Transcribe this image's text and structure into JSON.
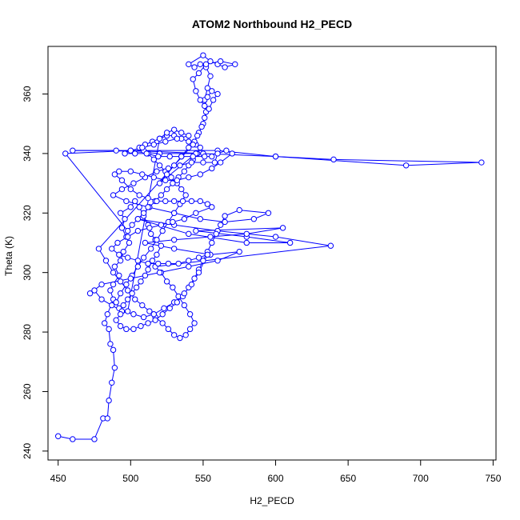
{
  "chart_data": {
    "type": "scatter",
    "title": "ATOM2 Northbound H2_PECD",
    "xlabel": "H2_PECD",
    "ylabel": "Theta (K)",
    "xlim": [
      443,
      752
    ],
    "ylim": [
      237,
      376
    ],
    "xticks": [
      450,
      500,
      550,
      600,
      650,
      700,
      750
    ],
    "yticks": [
      240,
      260,
      280,
      300,
      320,
      340,
      360
    ],
    "x_tick_labels": [
      "450",
      "500",
      "550",
      "600",
      "650",
      "700",
      "750"
    ],
    "y_tick_labels": [
      "240",
      "260",
      "280",
      "300",
      "320",
      "340",
      "360"
    ],
    "connect_points": true,
    "grid": false,
    "series": [
      {
        "style": "points-and-lines",
        "color": "#0000ff",
        "points": [
          [
            450,
            245
          ],
          [
            460,
            244
          ],
          [
            475,
            244
          ],
          [
            481,
            251
          ],
          [
            484,
            251
          ],
          [
            485,
            257
          ],
          [
            487,
            263
          ],
          [
            489,
            268
          ],
          [
            488,
            274
          ],
          [
            486,
            276
          ],
          [
            485,
            281
          ],
          [
            482,
            283
          ],
          [
            484,
            286
          ],
          [
            488,
            291
          ],
          [
            486,
            294
          ],
          [
            488,
            296
          ],
          [
            492,
            299
          ],
          [
            489,
            302
          ],
          [
            493,
            304
          ],
          [
            495,
            307
          ],
          [
            499,
            310
          ],
          [
            497,
            312
          ],
          [
            494,
            315
          ],
          [
            496,
            318
          ],
          [
            493,
            320
          ],
          [
            500,
            322
          ],
          [
            503,
            324
          ],
          [
            506,
            322
          ],
          [
            509,
            319
          ],
          [
            512,
            316
          ],
          [
            514,
            313
          ],
          [
            517,
            311
          ],
          [
            521,
            309
          ],
          [
            518,
            306
          ],
          [
            515,
            304
          ],
          [
            512,
            301
          ],
          [
            510,
            299
          ],
          [
            507,
            297
          ],
          [
            504,
            295
          ],
          [
            501,
            293
          ],
          [
            498,
            291
          ],
          [
            495,
            289
          ],
          [
            492,
            288
          ],
          [
            490,
            290
          ],
          [
            493,
            293
          ],
          [
            497,
            296
          ],
          [
            501,
            299
          ],
          [
            505,
            302
          ],
          [
            509,
            305
          ],
          [
            514,
            308
          ],
          [
            518,
            311
          ],
          [
            522,
            314
          ],
          [
            526,
            317
          ],
          [
            530,
            320
          ],
          [
            534,
            323
          ],
          [
            538,
            326
          ],
          [
            535,
            328
          ],
          [
            532,
            330
          ],
          [
            528,
            332
          ],
          [
            524,
            334
          ],
          [
            520,
            336
          ],
          [
            516,
            338
          ],
          [
            512,
            340
          ],
          [
            509,
            341
          ],
          [
            506,
            342
          ],
          [
            510,
            343
          ],
          [
            515,
            344
          ],
          [
            520,
            345
          ],
          [
            525,
            346
          ],
          [
            530,
            346
          ],
          [
            535,
            345
          ],
          [
            540,
            344
          ],
          [
            545,
            343
          ],
          [
            548,
            342
          ],
          [
            546,
            340
          ],
          [
            543,
            338
          ],
          [
            540,
            336
          ],
          [
            537,
            334
          ],
          [
            533,
            332
          ],
          [
            529,
            330
          ],
          [
            525,
            328
          ],
          [
            521,
            326
          ],
          [
            517,
            324
          ],
          [
            513,
            322
          ],
          [
            509,
            320
          ],
          [
            505,
            318
          ],
          [
            501,
            316
          ],
          [
            498,
            314
          ],
          [
            455,
            340
          ],
          [
            500,
            341
          ],
          [
            560,
            341
          ],
          [
            600,
            339
          ],
          [
            690,
            336
          ],
          [
            742,
            337
          ],
          [
            640,
            338
          ],
          [
            600,
            339
          ],
          [
            550,
            340
          ],
          [
            500,
            341
          ],
          [
            460,
            341
          ],
          [
            490,
            341
          ],
          [
            520,
            340
          ],
          [
            545,
            340
          ],
          [
            520,
            330
          ],
          [
            525,
            333
          ],
          [
            530,
            336
          ],
          [
            535,
            339
          ],
          [
            540,
            342
          ],
          [
            544,
            344
          ],
          [
            547,
            347
          ],
          [
            550,
            350
          ],
          [
            552,
            354
          ],
          [
            551,
            358
          ],
          [
            553,
            362
          ],
          [
            555,
            366
          ],
          [
            552,
            369
          ],
          [
            548,
            370
          ],
          [
            544,
            369
          ],
          [
            540,
            370
          ],
          [
            550,
            373
          ],
          [
            555,
            371
          ],
          [
            560,
            370
          ],
          [
            565,
            369
          ],
          [
            572,
            370
          ],
          [
            562,
            371
          ],
          [
            552,
            370
          ],
          [
            547,
            367
          ],
          [
            543,
            365
          ],
          [
            545,
            361
          ],
          [
            548,
            358
          ],
          [
            551,
            356
          ],
          [
            553,
            359
          ],
          [
            556,
            361
          ],
          [
            560,
            360
          ],
          [
            557,
            358
          ],
          [
            554,
            355
          ],
          [
            551,
            352
          ],
          [
            549,
            349
          ],
          [
            546,
            346
          ],
          [
            543,
            343
          ],
          [
            478,
            308
          ],
          [
            483,
            304
          ],
          [
            488,
            300
          ],
          [
            493,
            297
          ],
          [
            498,
            294
          ],
          [
            503,
            291
          ],
          [
            508,
            289
          ],
          [
            513,
            287
          ],
          [
            517,
            285
          ],
          [
            522,
            283
          ],
          [
            526,
            281
          ],
          [
            530,
            279
          ],
          [
            534,
            278
          ],
          [
            538,
            279
          ],
          [
            541,
            281
          ],
          [
            544,
            283
          ],
          [
            541,
            286
          ],
          [
            537,
            289
          ],
          [
            533,
            292
          ],
          [
            529,
            295
          ],
          [
            525,
            297
          ],
          [
            521,
            300
          ],
          [
            517,
            302
          ],
          [
            638,
            309
          ],
          [
            600,
            312
          ],
          [
            560,
            314
          ],
          [
            530,
            316
          ],
          [
            505,
            318
          ],
          [
            540,
            313
          ],
          [
            580,
            310
          ],
          [
            610,
            310
          ],
          [
            580,
            312
          ],
          [
            545,
            314
          ],
          [
            605,
            315
          ],
          [
            580,
            313
          ],
          [
            555,
            312
          ],
          [
            530,
            311
          ],
          [
            510,
            310
          ],
          [
            530,
            308
          ],
          [
            555,
            306
          ],
          [
            575,
            307
          ],
          [
            560,
            304
          ],
          [
            540,
            302
          ],
          [
            520,
            300
          ],
          [
            500,
            298
          ],
          [
            480,
            296
          ],
          [
            472,
            293
          ],
          [
            475,
            294
          ],
          [
            480,
            291
          ],
          [
            487,
            289
          ],
          [
            494,
            287
          ],
          [
            502,
            286
          ],
          [
            509,
            285
          ],
          [
            516,
            286
          ],
          [
            523,
            288
          ],
          [
            530,
            290
          ],
          [
            536,
            292
          ],
          [
            540,
            295
          ],
          [
            544,
            298
          ],
          [
            547,
            301
          ],
          [
            550,
            304
          ],
          [
            553,
            307
          ],
          [
            556,
            310
          ],
          [
            559,
            313
          ],
          [
            562,
            316
          ],
          [
            565,
            319
          ],
          [
            575,
            321
          ],
          [
            595,
            320
          ],
          [
            585,
            318
          ],
          [
            565,
            317
          ],
          [
            548,
            318
          ],
          [
            530,
            320
          ],
          [
            512,
            322
          ],
          [
            497,
            324
          ],
          [
            488,
            326
          ],
          [
            494,
            328
          ],
          [
            502,
            330
          ],
          [
            510,
            332
          ],
          [
            518,
            334
          ],
          [
            526,
            335
          ],
          [
            534,
            336
          ],
          [
            542,
            337
          ],
          [
            550,
            337
          ],
          [
            558,
            337
          ],
          [
            560,
            340
          ],
          [
            566,
            341
          ],
          [
            570,
            340
          ],
          [
            562,
            337
          ],
          [
            556,
            335
          ],
          [
            548,
            333
          ],
          [
            540,
            332
          ],
          [
            532,
            331
          ],
          [
            524,
            331
          ],
          [
            516,
            332
          ],
          [
            508,
            333
          ],
          [
            500,
            334
          ],
          [
            492,
            334
          ],
          [
            489,
            333
          ],
          [
            494,
            331
          ],
          [
            500,
            328
          ],
          [
            506,
            326
          ],
          [
            512,
            325
          ],
          [
            518,
            324
          ],
          [
            524,
            324
          ],
          [
            530,
            324
          ],
          [
            536,
            324
          ],
          [
            542,
            324
          ],
          [
            548,
            324
          ],
          [
            553,
            323
          ],
          [
            556,
            322
          ],
          [
            545,
            320
          ],
          [
            537,
            318
          ],
          [
            529,
            317
          ],
          [
            521,
            316
          ],
          [
            513,
            315
          ],
          [
            505,
            314
          ],
          [
            498,
            312
          ],
          [
            491,
            310
          ],
          [
            487,
            308
          ],
          [
            492,
            306
          ],
          [
            498,
            305
          ],
          [
            505,
            304
          ],
          [
            512,
            303
          ],
          [
            519,
            303
          ],
          [
            526,
            303
          ],
          [
            533,
            303
          ],
          [
            540,
            304
          ],
          [
            547,
            305
          ],
          [
            553,
            306
          ],
          [
            547,
            300
          ],
          [
            542,
            296
          ],
          [
            537,
            293
          ],
          [
            532,
            290
          ],
          [
            527,
            288
          ],
          [
            522,
            286
          ],
          [
            517,
            284
          ],
          [
            512,
            283
          ],
          [
            507,
            282
          ],
          [
            502,
            281
          ],
          [
            497,
            281
          ],
          [
            493,
            282
          ],
          [
            490,
            284
          ],
          [
            493,
            286
          ],
          [
            498,
            287
          ],
          [
            520,
            345
          ],
          [
            525,
            347
          ],
          [
            530,
            348
          ],
          [
            535,
            347
          ],
          [
            540,
            346
          ],
          [
            532,
            345
          ],
          [
            524,
            344
          ],
          [
            516,
            343
          ],
          [
            508,
            342
          ],
          [
            500,
            341
          ],
          [
            496,
            340
          ],
          [
            503,
            340
          ],
          [
            511,
            340
          ],
          [
            519,
            339
          ],
          [
            527,
            339
          ],
          [
            535,
            339
          ],
          [
            543,
            339
          ],
          [
            551,
            339
          ],
          [
            556,
            339
          ]
        ]
      }
    ]
  }
}
